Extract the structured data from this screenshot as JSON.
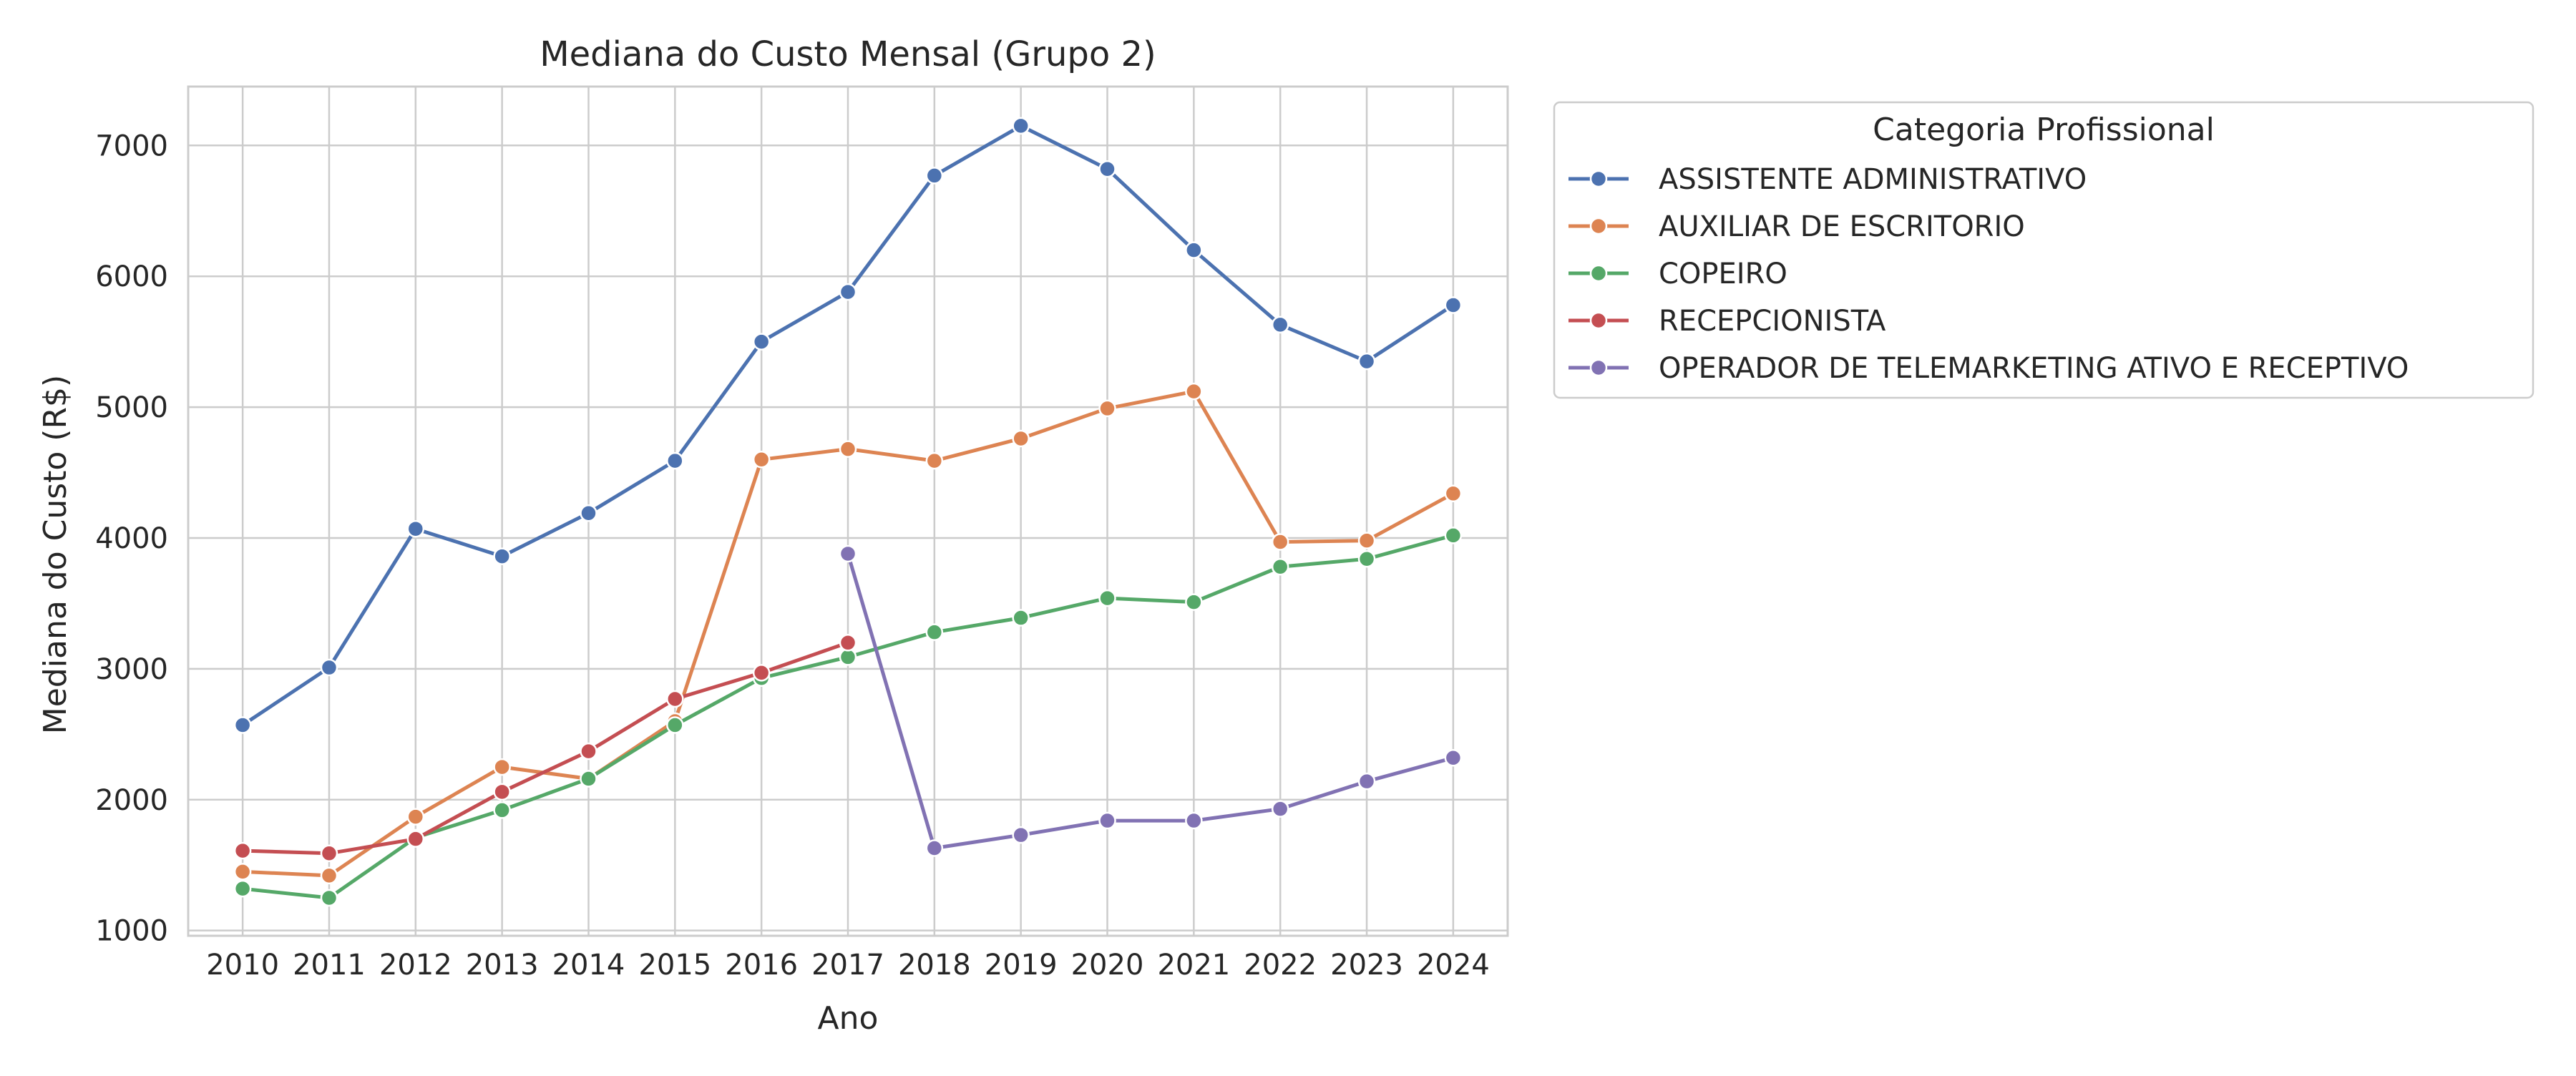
{
  "chart_data": {
    "type": "line",
    "title": "Mediana do Custo Mensal (Grupo 2)",
    "xlabel": "Ano",
    "ylabel": "Mediana do Custo (R$)",
    "x": [
      2010,
      2011,
      2012,
      2013,
      2014,
      2015,
      2016,
      2017,
      2018,
      2019,
      2020,
      2021,
      2022,
      2023,
      2024
    ],
    "x_ticks": [
      "2010",
      "2011",
      "2012",
      "2013",
      "2014",
      "2015",
      "2016",
      "2017",
      "2018",
      "2019",
      "2020",
      "2021",
      "2022",
      "2023",
      "2024"
    ],
    "y_ticks": [
      "1000",
      "2000",
      "3000",
      "4000",
      "5000",
      "6000",
      "7000"
    ],
    "ylim": [
      960,
      7450
    ],
    "grid": true,
    "legend": {
      "title": "Categoria Profissional",
      "placement": "outside-top-right"
    },
    "series": [
      {
        "name": "ASSISTENTE ADMINISTRATIVO",
        "color": "#4c72b0",
        "values": [
          2570,
          3010,
          4070,
          3860,
          4190,
          4590,
          5500,
          5880,
          6770,
          7150,
          6820,
          6200,
          5630,
          5350,
          5780
        ]
      },
      {
        "name": "AUXILIAR DE ESCRITORIO",
        "color": "#dd8452",
        "values": [
          1450,
          1420,
          1870,
          2250,
          2160,
          2600,
          4600,
          4680,
          4590,
          4760,
          4990,
          5120,
          3970,
          3980,
          4340
        ]
      },
      {
        "name": "COPEIRO",
        "color": "#55a868",
        "values": [
          1320,
          1250,
          1710,
          1920,
          2160,
          2570,
          2930,
          3090,
          3280,
          3390,
          3540,
          3510,
          3780,
          3840,
          4020
        ]
      },
      {
        "name": "RECEPCIONISTA",
        "color": "#c44e52",
        "values": [
          1610,
          1590,
          1700,
          2060,
          2370,
          2770,
          2970,
          3200,
          null,
          null,
          null,
          null,
          null,
          null,
          null
        ]
      },
      {
        "name": "OPERADOR DE TELEMARKETING ATIVO E RECEPTIVO",
        "color": "#8172b3",
        "values": [
          null,
          null,
          null,
          null,
          null,
          null,
          null,
          3880,
          1630,
          1730,
          1840,
          1840,
          1930,
          2140,
          2320
        ]
      }
    ]
  }
}
